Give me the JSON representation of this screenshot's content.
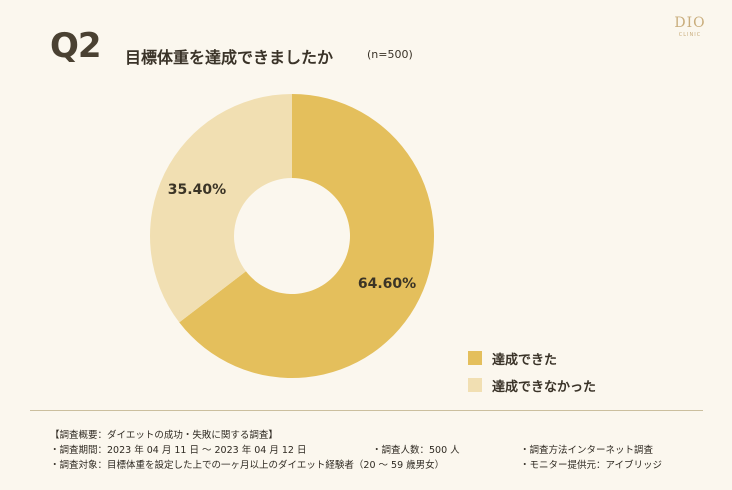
{
  "header": {
    "question_label": "Q2",
    "title": "目標体重を達成できましたか",
    "sample": "(n=500)"
  },
  "logo": {
    "text": "DIO",
    "subtext": "CLINIC"
  },
  "chart_data": {
    "type": "pie",
    "variant": "donut",
    "title": "目標体重を達成できましたか",
    "categories": [
      "達成できた",
      "達成できなかった"
    ],
    "values": [
      64.6,
      35.4
    ],
    "value_labels": [
      "64.60%",
      "35.40%"
    ],
    "colors": [
      "#e4bf5c",
      "#f1dfb2"
    ],
    "legend_position": "bottom-right"
  },
  "footer": {
    "summary_title": "【調査概要：ダイエットの成功・失敗に関する調査】",
    "period": "・調査期間：2023 年 04 月 11 日 ～ 2023 年 04 月 12 日",
    "respondents": "・調査人数：500 人",
    "method": "・調査方法インターネット調査",
    "target": "・調査対象：目標体重を設定した上での一ヶ月以上のダイエット経験者（20 ～ 59 歳男女）",
    "provider": "・モニター提供元：アイブリッジ"
  }
}
